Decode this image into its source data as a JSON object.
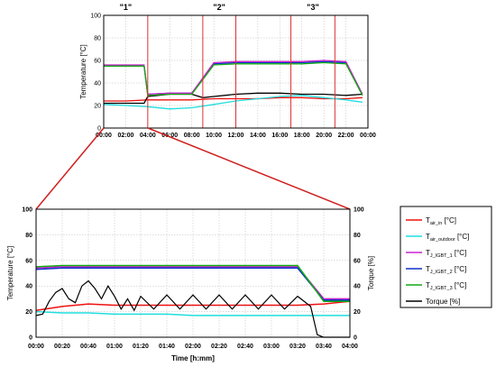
{
  "chart_data": [
    {
      "type": "line",
      "title": "",
      "xlabel": "",
      "ylabel": "Temperature [°C]",
      "ylim": [
        0,
        100
      ],
      "xlim": [
        "00:00",
        "24:00"
      ],
      "x_ticks": [
        "00:00",
        "02:00",
        "04:00",
        "06:00",
        "08:00",
        "10:00",
        "12:00",
        "14:00",
        "16:00",
        "18:00",
        "20:00",
        "22:00",
        "00:00"
      ],
      "y_ticks": [
        "0",
        "20",
        "40",
        "60",
        "80",
        "100"
      ],
      "grid": true,
      "highlight_windows": [
        {
          "label": "\"1\"",
          "start": "00:00",
          "end": "04:00"
        },
        {
          "label": "\"2\"",
          "start": "09:00",
          "end": "12:00"
        },
        {
          "label": "\"3\"",
          "start": "17:00",
          "end": "21:00"
        }
      ],
      "series": [
        {
          "color": "#ee1111",
          "x": [
            "00:00",
            "02:00",
            "04:00",
            "06:00",
            "08:00",
            "10:00",
            "12:00",
            "14:00",
            "16:00",
            "18:00",
            "20:00",
            "22:00",
            "23:30"
          ],
          "values": [
            24,
            24,
            25,
            25,
            25,
            26,
            26,
            26,
            27,
            27,
            26,
            26,
            27
          ]
        },
        {
          "color": "#22dddd",
          "x": [
            "00:00",
            "02:00",
            "04:00",
            "06:00",
            "08:00",
            "10:00",
            "12:00",
            "14:00",
            "16:00",
            "18:00",
            "20:00",
            "22:00",
            "23:30"
          ],
          "values": [
            21,
            20,
            19,
            17,
            18,
            21,
            24,
            26,
            28,
            29,
            27,
            25,
            23
          ]
        },
        {
          "color": "#000000",
          "x": [
            "00:00",
            "03:40",
            "04:00",
            "06:00",
            "08:00",
            "09:00",
            "10:00",
            "12:00",
            "14:00",
            "16:00",
            "18:00",
            "20:00",
            "22:00",
            "23:30"
          ],
          "values": [
            22,
            22,
            28,
            30,
            30,
            27,
            28,
            30,
            31,
            31,
            30,
            30,
            29,
            30
          ]
        },
        {
          "color": "#1133cc",
          "x": [
            "00:00",
            "03:40",
            "04:00",
            "06:00",
            "08:00",
            "10:00",
            "12:00",
            "14:00",
            "16:00",
            "18:00",
            "20:00",
            "22:00",
            "23:30"
          ],
          "values": [
            55,
            55,
            30,
            31,
            31,
            57,
            58,
            58,
            58,
            58,
            59,
            58,
            30
          ]
        },
        {
          "color": "#cc22cc",
          "x": [
            "00:00",
            "03:40",
            "04:00",
            "06:00",
            "08:00",
            "10:00",
            "12:00",
            "14:00",
            "16:00",
            "18:00",
            "20:00",
            "22:00",
            "23:30"
          ],
          "values": [
            56,
            56,
            30,
            31,
            31,
            58,
            59,
            59,
            59,
            59,
            60,
            59,
            30
          ]
        },
        {
          "color": "#11aa11",
          "x": [
            "00:00",
            "03:40",
            "04:00",
            "06:00",
            "08:00",
            "10:00",
            "12:00",
            "14:00",
            "16:00",
            "18:00",
            "20:00",
            "22:00",
            "23:30"
          ],
          "values": [
            55,
            55,
            29,
            30,
            30,
            56,
            57,
            57,
            57,
            57,
            58,
            57,
            29
          ]
        }
      ]
    },
    {
      "type": "line",
      "title": "",
      "xlabel": "Time [h:mm]",
      "ylabel": "Temperature [°C]",
      "y2label": "Torque [%]",
      "ylim": [
        0,
        100
      ],
      "y2lim": [
        0,
        100
      ],
      "xlim": [
        "00:00",
        "04:00"
      ],
      "x_ticks": [
        "00:00",
        "00:20",
        "00:40",
        "01:00",
        "01:20",
        "01:40",
        "02:00",
        "02:20",
        "02:40",
        "03:00",
        "03:20",
        "03:40",
        "04:00"
      ],
      "y_ticks": [
        "0",
        "20",
        "40",
        "60",
        "80",
        "100"
      ],
      "grid": true,
      "legend_position": "right",
      "series": [
        {
          "name": "T_air_in [°C]",
          "color": "#ee1111",
          "x": [
            "00:00",
            "00:20",
            "00:40",
            "01:00",
            "01:20",
            "01:40",
            "02:00",
            "02:20",
            "02:40",
            "03:00",
            "03:20",
            "03:40",
            "04:00"
          ],
          "values": [
            21,
            24,
            26,
            25,
            25,
            25,
            25,
            25,
            25,
            25,
            25,
            26,
            28
          ]
        },
        {
          "name": "T_air_outdoor [°C]",
          "color": "#22dddd",
          "x": [
            "00:00",
            "00:20",
            "00:40",
            "01:00",
            "01:20",
            "01:40",
            "02:00",
            "02:20",
            "02:40",
            "03:00",
            "03:20",
            "03:40",
            "04:00"
          ],
          "values": [
            20,
            19,
            19,
            18,
            18,
            18,
            17,
            17,
            17,
            17,
            17,
            17,
            17
          ]
        },
        {
          "name": "T_J_IGBT_1 [°C]",
          "color": "#cc22cc",
          "x": [
            "00:00",
            "00:20",
            "00:40",
            "01:00",
            "01:20",
            "01:40",
            "02:00",
            "02:20",
            "02:40",
            "03:00",
            "03:20",
            "03:40",
            "04:00"
          ],
          "values": [
            54,
            55,
            55,
            55,
            55,
            55,
            55,
            55,
            55,
            55,
            55,
            30,
            30
          ]
        },
        {
          "name": "T_J_IGBT_2 [°C]",
          "color": "#1133cc",
          "x": [
            "00:00",
            "00:20",
            "00:40",
            "01:00",
            "01:20",
            "01:40",
            "02:00",
            "02:20",
            "02:40",
            "03:00",
            "03:20",
            "03:40",
            "04:00"
          ],
          "values": [
            53,
            54,
            54,
            54,
            54,
            54,
            54,
            54,
            54,
            54,
            54,
            29,
            29
          ]
        },
        {
          "name": "T_J_IGBT_3 [°C]",
          "color": "#11aa11",
          "x": [
            "00:00",
            "00:20",
            "00:40",
            "01:00",
            "01:20",
            "01:40",
            "02:00",
            "02:20",
            "02:40",
            "03:00",
            "03:20",
            "03:40",
            "04:00"
          ],
          "values": [
            55,
            56,
            56,
            56,
            56,
            56,
            56,
            56,
            56,
            56,
            56,
            28,
            28
          ]
        },
        {
          "name": "Torque [%]",
          "color": "#000000",
          "x": [
            "00:00",
            "00:05",
            "00:10",
            "00:15",
            "00:20",
            "00:25",
            "00:30",
            "00:35",
            "00:40",
            "00:45",
            "00:50",
            "00:55",
            "01:00",
            "01:05",
            "01:10",
            "01:15",
            "01:20",
            "01:30",
            "01:40",
            "01:50",
            "02:00",
            "02:10",
            "02:20",
            "02:30",
            "02:40",
            "02:50",
            "03:00",
            "03:10",
            "03:20",
            "03:30",
            "03:35",
            "03:40",
            "04:00"
          ],
          "values": [
            17,
            18,
            28,
            35,
            38,
            30,
            27,
            40,
            44,
            38,
            30,
            40,
            32,
            22,
            30,
            21,
            32,
            22,
            33,
            22,
            33,
            22,
            33,
            22,
            33,
            22,
            33,
            22,
            32,
            24,
            2,
            0,
            0
          ]
        }
      ]
    }
  ],
  "overview": {
    "ylabel": "Temperature [°C]",
    "ticks_y": [
      "0",
      "20",
      "40",
      "60",
      "80",
      "100"
    ],
    "ticks_x": [
      "00:00",
      "02:00",
      "04:00",
      "06:00",
      "08:00",
      "10:00",
      "12:00",
      "14:00",
      "16:00",
      "18:00",
      "20:00",
      "22:00",
      "00:00"
    ],
    "windows": [
      "\"1\"",
      "\"2\"",
      "\"3\""
    ]
  },
  "detail": {
    "ylabel": "Temperature [°C]",
    "y2label": "Torque [%]",
    "xlabel": "Time [h:mm]",
    "ticks_y": [
      "0",
      "20",
      "40",
      "60",
      "80",
      "100"
    ],
    "ticks_y2": [
      "0",
      "20",
      "40",
      "60",
      "80",
      "100"
    ],
    "ticks_x": [
      "00:00",
      "00:20",
      "00:40",
      "01:00",
      "01:20",
      "01:40",
      "02:00",
      "02:20",
      "02:40",
      "03:00",
      "03:20",
      "03:40",
      "04:00"
    ]
  },
  "legend": [
    {
      "main": "T",
      "sub": "air_in",
      "unit": " [°C]",
      "color": "#ee1111"
    },
    {
      "main": "T",
      "sub": "air_outdoor",
      "unit": " [°C]",
      "color": "#22dddd"
    },
    {
      "main": "T",
      "sub": "J_IGBT_1",
      "unit": " [°C]",
      "color": "#cc22cc"
    },
    {
      "main": "T",
      "sub": "J_IGBT_2",
      "unit": " [°C]",
      "color": "#1133cc"
    },
    {
      "main": "T",
      "sub": "J_IGBT_3",
      "unit": " [°C]",
      "color": "#11aa11"
    },
    {
      "main": "Torque [%]",
      "sub": "",
      "unit": "",
      "color": "#000000"
    }
  ]
}
